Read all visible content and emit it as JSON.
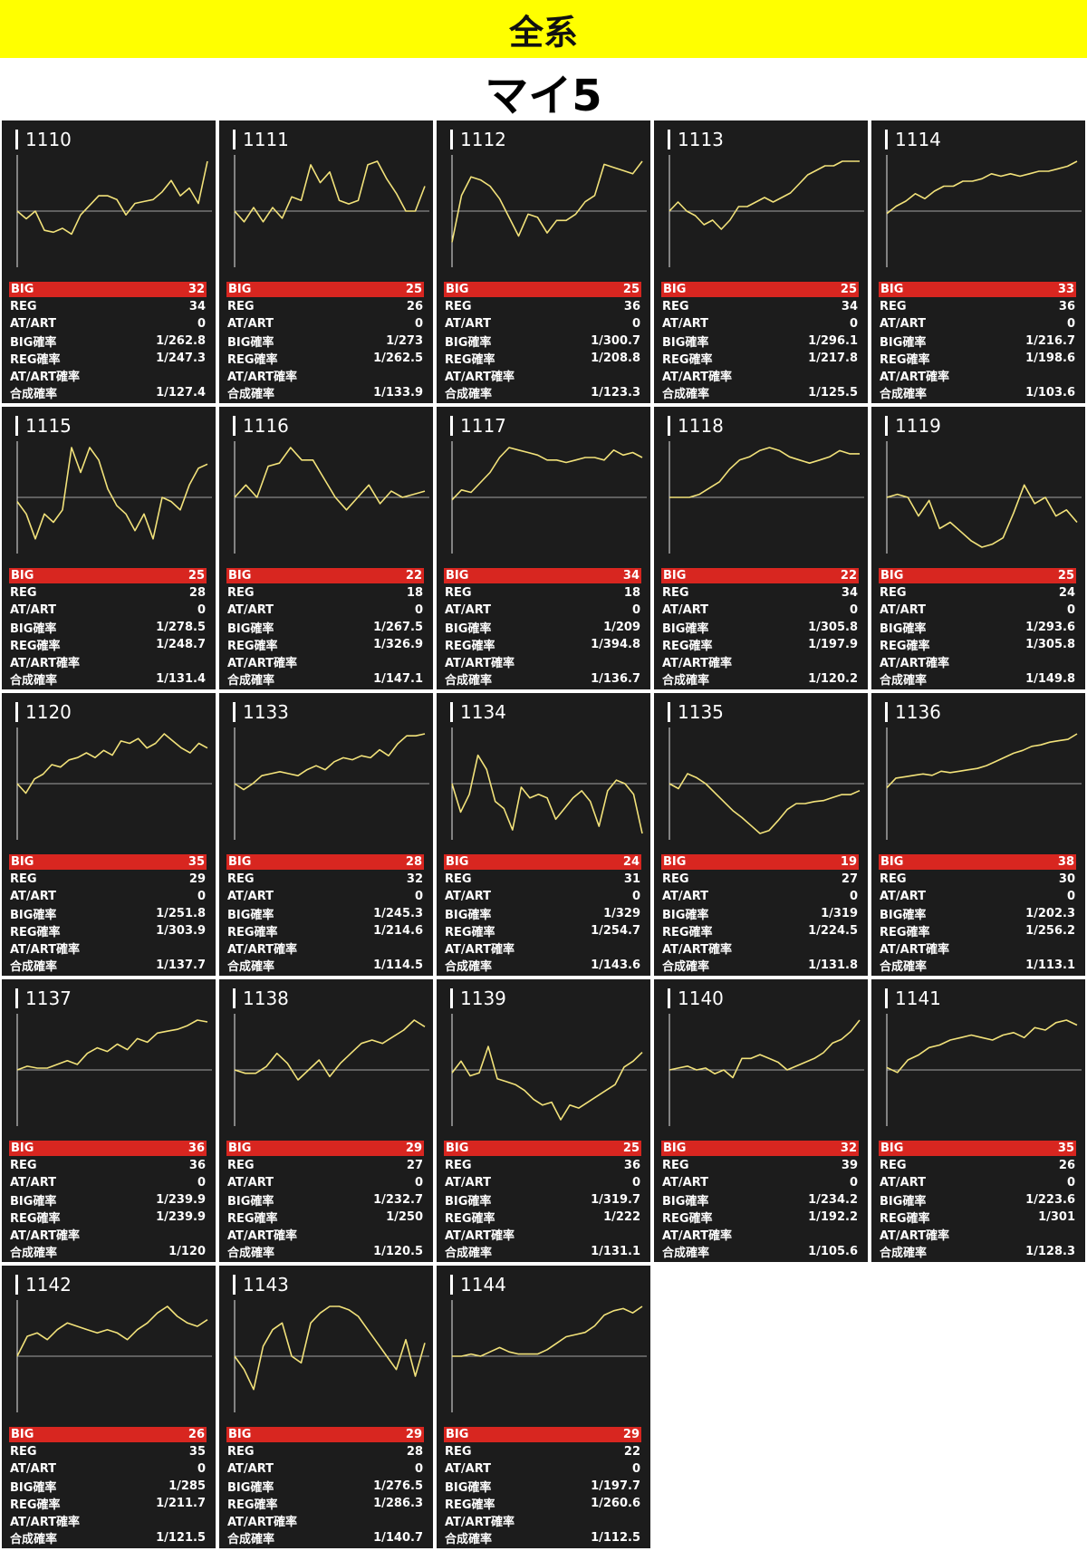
{
  "header": {
    "title": "全系",
    "subtitle": "マイ5"
  },
  "labels": {
    "big": "BIG",
    "reg": "REG",
    "at": "AT/ART",
    "big_rate": "BIG確率",
    "reg_rate": "REG確率",
    "at_rate": "AT/ART確率",
    "total_rate": "合成確率"
  },
  "colors": {
    "banner": "#ffff00",
    "card_bg": "#1c1c1c",
    "line": "#f2e27a",
    "big_bar": "#d82620",
    "text": "#ffffff"
  },
  "chart_data": [
    {
      "type": "line",
      "name": "1110",
      "values": [
        0,
        -4,
        0,
        -10,
        -11,
        -9,
        -12,
        -2,
        3,
        8,
        8,
        6,
        -2,
        4,
        5,
        6,
        10,
        16,
        8,
        12,
        4,
        26
      ]
    },
    {
      "type": "line",
      "name": "1111",
      "values": [
        0,
        -3,
        1,
        -3,
        1,
        -2,
        4,
        3,
        13,
        8,
        11,
        3,
        2,
        3,
        13,
        14,
        9,
        5,
        0,
        0,
        7
      ]
    },
    {
      "type": "line",
      "name": "1112",
      "values": [
        -10,
        5,
        11,
        10,
        8,
        4,
        -2,
        -8,
        -1,
        -2,
        -7,
        -3,
        -3,
        -1,
        3,
        5,
        15,
        14,
        13,
        12,
        16
      ]
    },
    {
      "type": "line",
      "name": "1113",
      "values": [
        0,
        2,
        0,
        -1,
        -3,
        -2,
        -4,
        -2,
        1,
        1,
        2,
        3,
        2,
        3,
        4,
        6,
        8,
        9,
        10,
        10,
        11,
        11,
        11
      ]
    },
    {
      "type": "line",
      "name": "1114",
      "values": [
        -1,
        2,
        4,
        7,
        5,
        8,
        10,
        10,
        12,
        12,
        13,
        15,
        14,
        15,
        14,
        15,
        16,
        16,
        17,
        18,
        20
      ]
    },
    {
      "type": "line",
      "name": "1115",
      "values": [
        -1,
        -4,
        -10,
        -4,
        -6,
        -3,
        12,
        6,
        12,
        9,
        2,
        -2,
        -4,
        -8,
        -4,
        -10,
        0,
        -1,
        -3,
        3,
        7,
        8
      ]
    },
    {
      "type": "line",
      "name": "1116",
      "values": [
        0,
        4,
        0,
        10,
        11,
        16,
        12,
        12,
        6,
        0,
        -4,
        0,
        4,
        -2,
        2,
        0,
        1,
        2
      ]
    },
    {
      "type": "line",
      "name": "1117",
      "values": [
        -1,
        3,
        2,
        6,
        10,
        16,
        20,
        19,
        18,
        17,
        15,
        15,
        14,
        15,
        16,
        16,
        15,
        19,
        17,
        18,
        16
      ]
    },
    {
      "type": "line",
      "name": "1118",
      "values": [
        0,
        0,
        0,
        1,
        3,
        5,
        9,
        12,
        13,
        15,
        16,
        15,
        13,
        12,
        11,
        12,
        13,
        15,
        14,
        14
      ]
    },
    {
      "type": "line",
      "name": "1119",
      "values": [
        0,
        1,
        0,
        -6,
        -1,
        -10,
        -8,
        -11,
        -14,
        -16,
        -15,
        -13,
        -5,
        4,
        -2,
        0,
        -6,
        -4,
        -8
      ]
    },
    {
      "type": "line",
      "name": "1120",
      "values": [
        0,
        -4,
        2,
        4,
        8,
        7,
        10,
        11,
        13,
        11,
        14,
        12,
        18,
        17,
        19,
        15,
        17,
        21,
        18,
        15,
        13,
        17,
        15
      ]
    },
    {
      "type": "line",
      "name": "1133",
      "values": [
        0,
        -3,
        0,
        4,
        5,
        6,
        5,
        4,
        7,
        9,
        7,
        11,
        13,
        12,
        14,
        13,
        17,
        14,
        20,
        24,
        24,
        25
      ]
    },
    {
      "type": "line",
      "name": "1134",
      "values": [
        0,
        -8,
        -3,
        8,
        4,
        -5,
        -7,
        -13,
        -1,
        -4,
        -3,
        -4,
        -10,
        -7,
        -4,
        -2,
        -5,
        -12,
        -2,
        1,
        0,
        -3,
        -14
      ]
    },
    {
      "type": "line",
      "name": "1135",
      "values": [
        0,
        -5,
        10,
        6,
        0,
        -9,
        -18,
        -27,
        -34,
        -42,
        -50,
        -47,
        -37,
        -26,
        -20,
        -20,
        -18,
        -17,
        -14,
        -11,
        -11,
        -7
      ]
    },
    {
      "type": "line",
      "name": "1136",
      "values": [
        -3,
        4,
        5,
        6,
        7,
        6,
        9,
        8,
        9,
        10,
        11,
        13,
        16,
        19,
        22,
        24,
        27,
        28,
        30,
        31,
        32,
        36
      ]
    },
    {
      "type": "line",
      "name": "1137",
      "values": [
        0,
        2,
        1,
        1,
        3,
        5,
        3,
        9,
        12,
        10,
        14,
        11,
        17,
        15,
        20,
        21,
        22,
        24,
        27,
        26
      ]
    },
    {
      "type": "line",
      "name": "1138",
      "values": [
        0,
        -1,
        -1,
        1,
        5,
        2,
        -3,
        0,
        3,
        -2,
        2,
        5,
        8,
        9,
        8,
        10,
        12,
        15,
        13
      ]
    },
    {
      "type": "line",
      "name": "1139",
      "values": [
        -1,
        3,
        -2,
        -1,
        8,
        -3,
        -4,
        -5,
        -7,
        -10,
        -12,
        -11,
        -17,
        -12,
        -13,
        -11,
        -9,
        -7,
        -5,
        1,
        3,
        6
      ]
    },
    {
      "type": "line",
      "name": "1140",
      "values": [
        0,
        1,
        2,
        0,
        1,
        -2,
        0,
        -4,
        6,
        6,
        8,
        6,
        4,
        0,
        2,
        4,
        6,
        9,
        14,
        16,
        20,
        26
      ]
    },
    {
      "type": "line",
      "name": "1141",
      "values": [
        1,
        -1,
        4,
        6,
        9,
        10,
        12,
        13,
        14,
        13,
        12,
        14,
        15,
        13,
        17,
        16,
        19,
        20,
        18
      ]
    },
    {
      "type": "line",
      "name": "1142",
      "values": [
        0,
        6,
        7,
        5,
        8,
        10,
        9,
        8,
        7,
        8,
        7,
        5,
        8,
        10,
        13,
        15,
        12,
        10,
        9,
        11
      ]
    },
    {
      "type": "line",
      "name": "1143",
      "values": [
        0,
        -4,
        -10,
        3,
        8,
        10,
        0,
        -2,
        10,
        13,
        15,
        15,
        14,
        12,
        8,
        4,
        0,
        -4,
        5,
        -6,
        4
      ]
    },
    {
      "type": "line",
      "name": "1144",
      "values": [
        0,
        0,
        1,
        0,
        2,
        4,
        2,
        1,
        1,
        1,
        3,
        6,
        9,
        10,
        11,
        14,
        19,
        21,
        22,
        20,
        23
      ]
    }
  ],
  "machines": [
    {
      "name": "1110",
      "big": "32",
      "reg": "34",
      "at": "0",
      "big_rate": "1/262.8",
      "reg_rate": "1/247.3",
      "at_rate": "",
      "total_rate": "1/127.4"
    },
    {
      "name": "1111",
      "big": "25",
      "reg": "26",
      "at": "0",
      "big_rate": "1/273",
      "reg_rate": "1/262.5",
      "at_rate": "",
      "total_rate": "1/133.9"
    },
    {
      "name": "1112",
      "big": "25",
      "reg": "36",
      "at": "0",
      "big_rate": "1/300.7",
      "reg_rate": "1/208.8",
      "at_rate": "",
      "total_rate": "1/123.3"
    },
    {
      "name": "1113",
      "big": "25",
      "reg": "34",
      "at": "0",
      "big_rate": "1/296.1",
      "reg_rate": "1/217.8",
      "at_rate": "",
      "total_rate": "1/125.5"
    },
    {
      "name": "1114",
      "big": "33",
      "reg": "36",
      "at": "0",
      "big_rate": "1/216.7",
      "reg_rate": "1/198.6",
      "at_rate": "",
      "total_rate": "1/103.6"
    },
    {
      "name": "1115",
      "big": "25",
      "reg": "28",
      "at": "0",
      "big_rate": "1/278.5",
      "reg_rate": "1/248.7",
      "at_rate": "",
      "total_rate": "1/131.4"
    },
    {
      "name": "1116",
      "big": "22",
      "reg": "18",
      "at": "0",
      "big_rate": "1/267.5",
      "reg_rate": "1/326.9",
      "at_rate": "",
      "total_rate": "1/147.1"
    },
    {
      "name": "1117",
      "big": "34",
      "reg": "18",
      "at": "0",
      "big_rate": "1/209",
      "reg_rate": "1/394.8",
      "at_rate": "",
      "total_rate": "1/136.7"
    },
    {
      "name": "1118",
      "big": "22",
      "reg": "34",
      "at": "0",
      "big_rate": "1/305.8",
      "reg_rate": "1/197.9",
      "at_rate": "",
      "total_rate": "1/120.2"
    },
    {
      "name": "1119",
      "big": "25",
      "reg": "24",
      "at": "0",
      "big_rate": "1/293.6",
      "reg_rate": "1/305.8",
      "at_rate": "",
      "total_rate": "1/149.8"
    },
    {
      "name": "1120",
      "big": "35",
      "reg": "29",
      "at": "0",
      "big_rate": "1/251.8",
      "reg_rate": "1/303.9",
      "at_rate": "",
      "total_rate": "1/137.7"
    },
    {
      "name": "1133",
      "big": "28",
      "reg": "32",
      "at": "0",
      "big_rate": "1/245.3",
      "reg_rate": "1/214.6",
      "at_rate": "",
      "total_rate": "1/114.5"
    },
    {
      "name": "1134",
      "big": "24",
      "reg": "31",
      "at": "0",
      "big_rate": "1/329",
      "reg_rate": "1/254.7",
      "at_rate": "",
      "total_rate": "1/143.6"
    },
    {
      "name": "1135",
      "big": "19",
      "reg": "27",
      "at": "0",
      "big_rate": "1/319",
      "reg_rate": "1/224.5",
      "at_rate": "",
      "total_rate": "1/131.8"
    },
    {
      "name": "1136",
      "big": "38",
      "reg": "30",
      "at": "0",
      "big_rate": "1/202.3",
      "reg_rate": "1/256.2",
      "at_rate": "",
      "total_rate": "1/113.1"
    },
    {
      "name": "1137",
      "big": "36",
      "reg": "36",
      "at": "0",
      "big_rate": "1/239.9",
      "reg_rate": "1/239.9",
      "at_rate": "",
      "total_rate": "1/120"
    },
    {
      "name": "1138",
      "big": "29",
      "reg": "27",
      "at": "0",
      "big_rate": "1/232.7",
      "reg_rate": "1/250",
      "at_rate": "",
      "total_rate": "1/120.5"
    },
    {
      "name": "1139",
      "big": "25",
      "reg": "36",
      "at": "0",
      "big_rate": "1/319.7",
      "reg_rate": "1/222",
      "at_rate": "",
      "total_rate": "1/131.1"
    },
    {
      "name": "1140",
      "big": "32",
      "reg": "39",
      "at": "0",
      "big_rate": "1/234.2",
      "reg_rate": "1/192.2",
      "at_rate": "",
      "total_rate": "1/105.6"
    },
    {
      "name": "1141",
      "big": "35",
      "reg": "26",
      "at": "0",
      "big_rate": "1/223.6",
      "reg_rate": "1/301",
      "at_rate": "",
      "total_rate": "1/128.3"
    },
    {
      "name": "1142",
      "big": "26",
      "reg": "35",
      "at": "0",
      "big_rate": "1/285",
      "reg_rate": "1/211.7",
      "at_rate": "",
      "total_rate": "1/121.5"
    },
    {
      "name": "1143",
      "big": "29",
      "reg": "28",
      "at": "0",
      "big_rate": "1/276.5",
      "reg_rate": "1/286.3",
      "at_rate": "",
      "total_rate": "1/140.7"
    },
    {
      "name": "1144",
      "big": "29",
      "reg": "22",
      "at": "0",
      "big_rate": "1/197.7",
      "reg_rate": "1/260.6",
      "at_rate": "",
      "total_rate": "1/112.5"
    }
  ]
}
